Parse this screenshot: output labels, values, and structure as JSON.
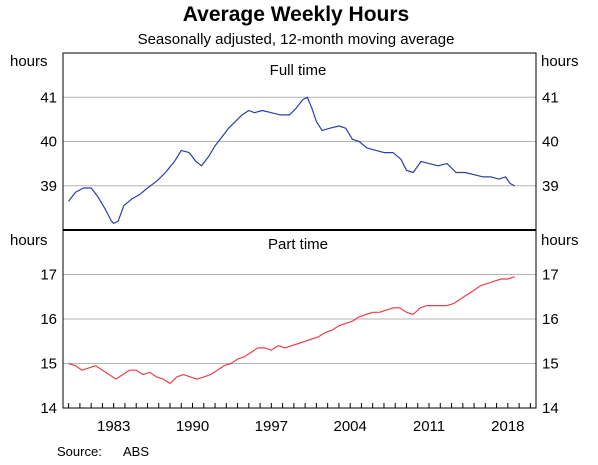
{
  "chart_data": {
    "type": "line",
    "title": "Average Weekly Hours",
    "subtitle": "Seasonally adjusted, 12-month moving average",
    "source_label": "Source:",
    "source": "ABS",
    "x_ticks": [
      "1983",
      "1990",
      "1997",
      "2004",
      "2011",
      "2018"
    ],
    "x_tick_values": [
      1983,
      1990,
      1997,
      2004,
      2011,
      2018
    ],
    "xlim": [
      1978.5,
      2020.5
    ],
    "grid": true,
    "panels": [
      {
        "name": "full-time",
        "title": "Full time",
        "unit": "hours",
        "ylim": [
          38,
          42
        ],
        "y_ticks": [
          "39",
          "40",
          "41"
        ],
        "y_tick_values": [
          39,
          40,
          41
        ],
        "color": "#2b3fa6",
        "series": [
          {
            "x": [
              1979.0,
              1979.6,
              1980.3,
              1981.0,
              1981.6,
              1982.3,
              1982.8,
              1983.0,
              1983.4,
              1983.9,
              1984.6,
              1985.3,
              1986.0,
              1986.8,
              1987.6,
              1988.4,
              1989.0,
              1989.7,
              1990.3,
              1990.8,
              1991.4,
              1992.0,
              1992.6,
              1993.2,
              1993.8,
              1994.4,
              1995.0,
              1995.5,
              1996.2,
              1997.0,
              1997.8,
              1998.6,
              1999.2,
              1999.8,
              2000.2,
              2000.6,
              2001.0,
              2001.5,
              2002.2,
              2003.0,
              2003.6,
              2004.2,
              2004.8,
              2005.5,
              2006.3,
              2007.0,
              2007.8,
              2008.5,
              2009.0,
              2009.6,
              2010.3,
              2011.0,
              2011.8,
              2012.6,
              2013.4,
              2014.2,
              2015.0,
              2015.8,
              2016.5,
              2017.2,
              2017.8,
              2018.2,
              2018.6
            ],
            "y": [
              38.65,
              38.85,
              38.95,
              38.95,
              38.75,
              38.45,
              38.2,
              38.15,
              38.2,
              38.55,
              38.7,
              38.8,
              38.95,
              39.1,
              39.3,
              39.55,
              39.8,
              39.75,
              39.55,
              39.45,
              39.65,
              39.9,
              40.1,
              40.3,
              40.45,
              40.6,
              40.7,
              40.65,
              40.7,
              40.65,
              40.6,
              40.6,
              40.75,
              40.95,
              41.0,
              40.75,
              40.45,
              40.25,
              40.3,
              40.35,
              40.3,
              40.05,
              40.0,
              39.85,
              39.8,
              39.75,
              39.75,
              39.6,
              39.35,
              39.3,
              39.55,
              39.5,
              39.45,
              39.5,
              39.3,
              39.3,
              39.25,
              39.2,
              39.2,
              39.15,
              39.2,
              39.05,
              39.0
            ]
          }
        ]
      },
      {
        "name": "part-time",
        "title": "Part time",
        "unit": "hours",
        "ylim": [
          14,
          18
        ],
        "y_ticks": [
          "14",
          "15",
          "16",
          "17"
        ],
        "y_tick_values": [
          14,
          15,
          16,
          17
        ],
        "color": "#e8424a",
        "series": [
          {
            "x": [
              1979.0,
              1979.6,
              1980.2,
              1980.8,
              1981.4,
              1982.0,
              1982.6,
              1983.2,
              1983.8,
              1984.4,
              1985.0,
              1985.6,
              1986.2,
              1986.8,
              1987.4,
              1988.0,
              1988.6,
              1989.2,
              1989.8,
              1990.4,
              1991.0,
              1991.6,
              1992.2,
              1992.8,
              1993.4,
              1994.0,
              1994.6,
              1995.2,
              1995.8,
              1996.4,
              1997.0,
              1997.6,
              1998.2,
              1998.8,
              1999.4,
              2000.0,
              2000.6,
              2001.2,
              2001.8,
              2002.4,
              2003.0,
              2003.6,
              2004.2,
              2004.8,
              2005.4,
              2006.0,
              2006.6,
              2007.2,
              2007.8,
              2008.4,
              2009.0,
              2009.6,
              2010.2,
              2010.8,
              2011.4,
              2012.0,
              2012.6,
              2013.2,
              2013.8,
              2014.4,
              2015.0,
              2015.6,
              2016.2,
              2016.8,
              2017.4,
              2018.0,
              2018.6
            ],
            "y": [
              15.0,
              14.95,
              14.85,
              14.9,
              14.95,
              14.85,
              14.75,
              14.65,
              14.75,
              14.85,
              14.85,
              14.75,
              14.8,
              14.7,
              14.65,
              14.55,
              14.7,
              14.75,
              14.7,
              14.65,
              14.7,
              14.75,
              14.85,
              14.95,
              15.0,
              15.1,
              15.15,
              15.25,
              15.35,
              15.35,
              15.3,
              15.4,
              15.35,
              15.4,
              15.45,
              15.5,
              15.55,
              15.6,
              15.7,
              15.75,
              15.85,
              15.9,
              15.95,
              16.05,
              16.1,
              16.15,
              16.15,
              16.2,
              16.25,
              16.25,
              16.15,
              16.1,
              16.25,
              16.3,
              16.3,
              16.3,
              16.3,
              16.35,
              16.45,
              16.55,
              16.65,
              16.75,
              16.8,
              16.85,
              16.9,
              16.9,
              16.95
            ]
          }
        ]
      }
    ]
  }
}
